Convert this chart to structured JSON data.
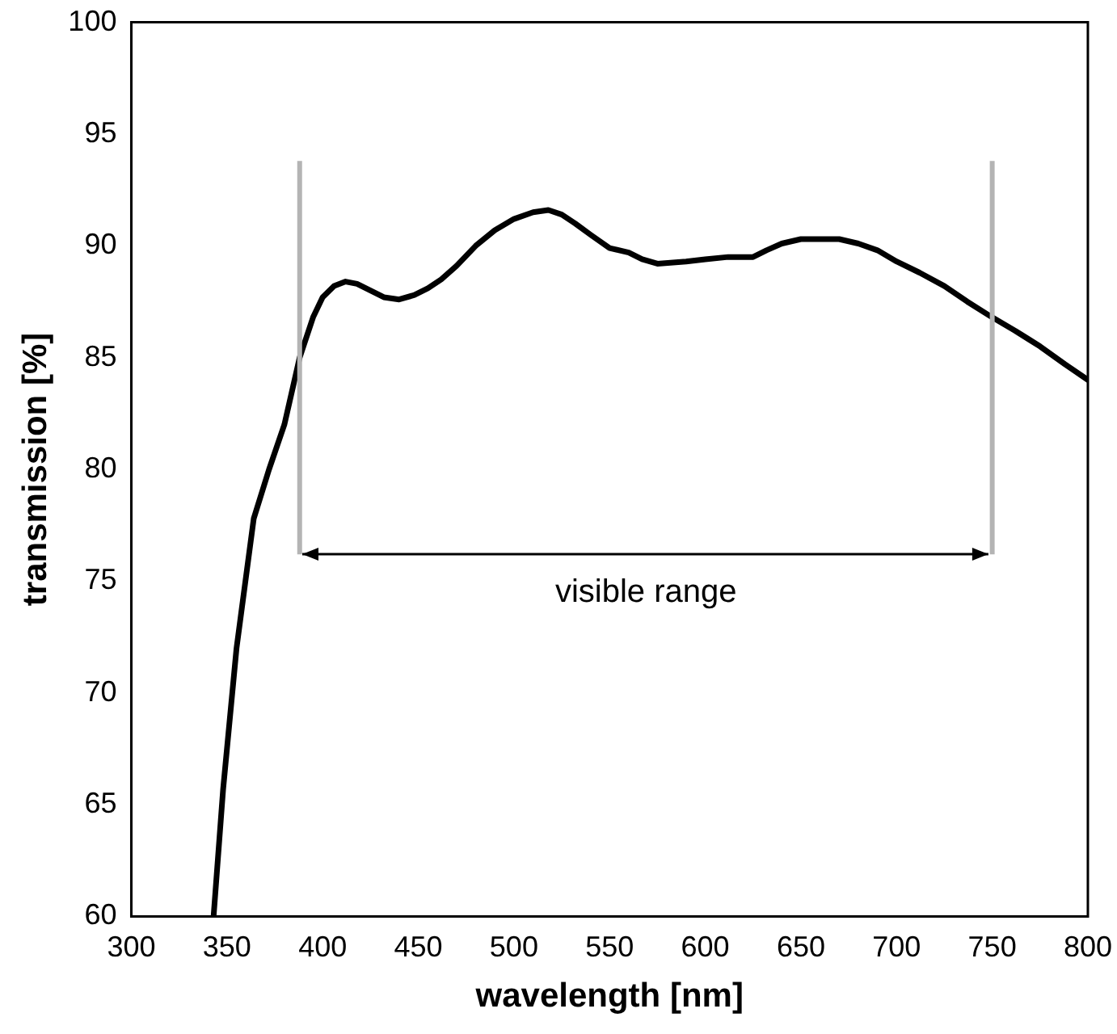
{
  "chart_data": {
    "type": "line",
    "xlabel": "wavelength [nm]",
    "ylabel": "transmission [%]",
    "x": [
      343,
      348,
      355,
      364,
      372,
      380,
      388,
      395,
      400,
      406,
      412,
      418,
      425,
      432,
      440,
      448,
      455,
      462,
      470,
      480,
      490,
      500,
      510,
      518,
      525,
      532,
      540,
      550,
      560,
      567,
      575,
      590,
      600,
      612,
      625,
      632,
      640,
      650,
      660,
      670,
      680,
      690,
      700,
      712,
      725,
      737,
      750,
      762,
      775,
      788,
      800
    ],
    "values": [
      60,
      65.7,
      72,
      77.8,
      80,
      82,
      85,
      86.8,
      87.7,
      88.2,
      88.4,
      88.3,
      88,
      87.7,
      87.6,
      87.8,
      88.1,
      88.5,
      89.1,
      90,
      90.7,
      91.2,
      91.5,
      91.6,
      91.4,
      91,
      90.5,
      89.9,
      89.7,
      89.4,
      89.2,
      89.3,
      89.4,
      89.5,
      89.5,
      89.8,
      90.1,
      90.3,
      90.3,
      90.3,
      90.1,
      89.8,
      89.3,
      88.8,
      88.2,
      87.5,
      86.8,
      86.2,
      85.5,
      84.7,
      84
    ],
    "color": "#000000",
    "marker": "none",
    "line_style": "solid",
    "xlim": [
      300,
      800
    ],
    "xticks": [
      300,
      350,
      400,
      450,
      500,
      550,
      600,
      650,
      700,
      750,
      800
    ],
    "ylim": [
      60,
      100
    ],
    "yticks": [
      60,
      65,
      70,
      75,
      80,
      85,
      90,
      95,
      100
    ],
    "grid": false,
    "legend": false,
    "ref_lines": [
      {
        "axis": "x",
        "value": 388,
        "color": "#b4b4b4"
      },
      {
        "axis": "x",
        "value": 750,
        "color": "#b4b4b4"
      }
    ],
    "annotations": [
      "visible range"
    ]
  }
}
